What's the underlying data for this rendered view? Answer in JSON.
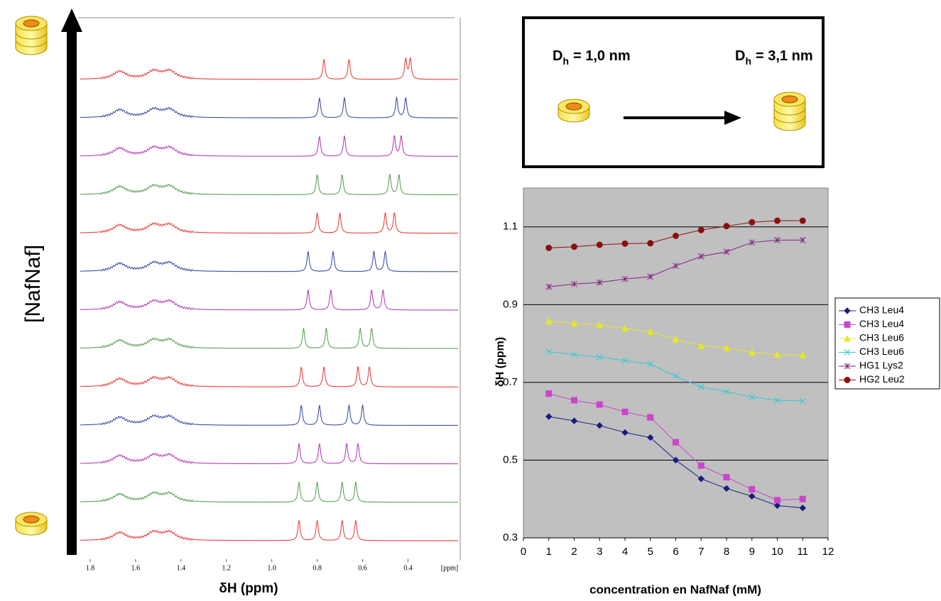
{
  "chart_data": [
    {
      "type": "spectra",
      "xlabel": "δH (ppm)",
      "ylabel": "[NafNaf]",
      "xlim": [
        1.9,
        0.17
      ],
      "xticks": [
        1.8,
        1.6,
        1.4,
        1.2,
        {
          "value": 1.0,
          "label": "1.0"
        },
        0.8,
        0.6,
        0.4
      ],
      "unit_label": "[ppm]",
      "traces": [
        {
          "color": "#e8302c",
          "peaks": [
            1.67,
            1.52,
            1.45,
            0.88,
            0.8,
            0.69,
            0.63
          ]
        },
        {
          "color": "#4a9a4a",
          "peaks": [
            1.67,
            1.52,
            1.45,
            0.88,
            0.8,
            0.69,
            0.63
          ]
        },
        {
          "color": "#b030b0",
          "peaks": [
            1.67,
            1.52,
            1.45,
            0.88,
            0.79,
            0.67,
            0.62
          ]
        },
        {
          "color": "#3040a0",
          "peaks": [
            1.67,
            1.52,
            1.45,
            0.87,
            0.79,
            0.66,
            0.6
          ]
        },
        {
          "color": "#e8302c",
          "peaks": [
            1.67,
            1.52,
            1.45,
            0.87,
            0.77,
            0.62,
            0.57
          ]
        },
        {
          "color": "#4a9a4a",
          "peaks": [
            1.67,
            1.52,
            1.45,
            0.86,
            0.76,
            0.61,
            0.56
          ]
        },
        {
          "color": "#b030b0",
          "peaks": [
            1.67,
            1.52,
            1.45,
            0.84,
            0.74,
            0.56,
            0.51
          ]
        },
        {
          "color": "#3040a0",
          "peaks": [
            1.67,
            1.52,
            1.45,
            0.84,
            0.73,
            0.55,
            0.5
          ]
        },
        {
          "color": "#e8302c",
          "peaks": [
            1.67,
            1.52,
            1.45,
            0.8,
            0.7,
            0.5,
            0.46
          ]
        },
        {
          "color": "#4a9a4a",
          "peaks": [
            1.67,
            1.52,
            1.45,
            0.8,
            0.69,
            0.48,
            0.44
          ]
        },
        {
          "color": "#b030b0",
          "peaks": [
            1.67,
            1.52,
            1.45,
            0.79,
            0.68,
            0.46,
            0.43
          ]
        },
        {
          "color": "#3040a0",
          "peaks": [
            1.67,
            1.52,
            1.45,
            0.79,
            0.68,
            0.45,
            0.41
          ]
        },
        {
          "color": "#e8302c",
          "peaks": [
            1.67,
            1.52,
            1.45,
            0.77,
            0.66,
            0.41,
            0.39
          ]
        }
      ]
    },
    {
      "type": "line",
      "xlabel": "concentration en NafNaf (mM)",
      "ylabel": "δH (ppm)",
      "xlim": [
        0,
        12
      ],
      "xticks": [
        0,
        1,
        2,
        3,
        4,
        5,
        6,
        7,
        8,
        9,
        10,
        11,
        12
      ],
      "ylim": [
        0.3,
        1.2
      ],
      "yticks": [
        0.3,
        0.5,
        0.7,
        0.9,
        1.1
      ],
      "grid": true,
      "legend": "right",
      "x": [
        1,
        2,
        3,
        4,
        5,
        6,
        7,
        8,
        9,
        10,
        11
      ],
      "series": [
        {
          "name": "CH3 Leu4",
          "color": "#1a1a80",
          "marker": "diamond",
          "values": [
            0.612,
            0.601,
            0.589,
            0.571,
            0.558,
            0.5,
            0.452,
            0.427,
            0.407,
            0.383,
            0.377
          ]
        },
        {
          "name": "CH3 Leu4",
          "color": "#cc44cc",
          "marker": "square",
          "values": [
            0.671,
            0.654,
            0.643,
            0.624,
            0.61,
            0.546,
            0.486,
            0.456,
            0.425,
            0.397,
            0.4
          ]
        },
        {
          "name": "CH3 Leu6",
          "color": "#e8e820",
          "marker": "triangle",
          "values": [
            0.858,
            0.852,
            0.848,
            0.839,
            0.83,
            0.811,
            0.794,
            0.789,
            0.777,
            0.772,
            0.77
          ]
        },
        {
          "name": "CH3 Leu6",
          "color": "#30c8d8",
          "marker": "x",
          "values": [
            0.779,
            0.772,
            0.765,
            0.756,
            0.747,
            0.716,
            0.688,
            0.676,
            0.662,
            0.654,
            0.652
          ]
        },
        {
          "name": "HG1 Lys2",
          "color": "#802080",
          "marker": "star",
          "values": [
            0.946,
            0.953,
            0.957,
            0.966,
            0.972,
            1.0,
            1.024,
            1.036,
            1.06,
            1.066,
            1.066
          ]
        },
        {
          "name": "HG2 Leu2",
          "color": "#8b1010",
          "marker": "circle",
          "values": [
            1.046,
            1.049,
            1.054,
            1.057,
            1.058,
            1.077,
            1.092,
            1.102,
            1.112,
            1.116,
            1.116
          ]
        }
      ]
    }
  ],
  "diagram": {
    "start": {
      "symbol": "D",
      "subscript": "h",
      "value": "= 1,0 nm"
    },
    "end": {
      "symbol": "D",
      "subscript": "h",
      "value": "= 3,1 nm"
    }
  }
}
